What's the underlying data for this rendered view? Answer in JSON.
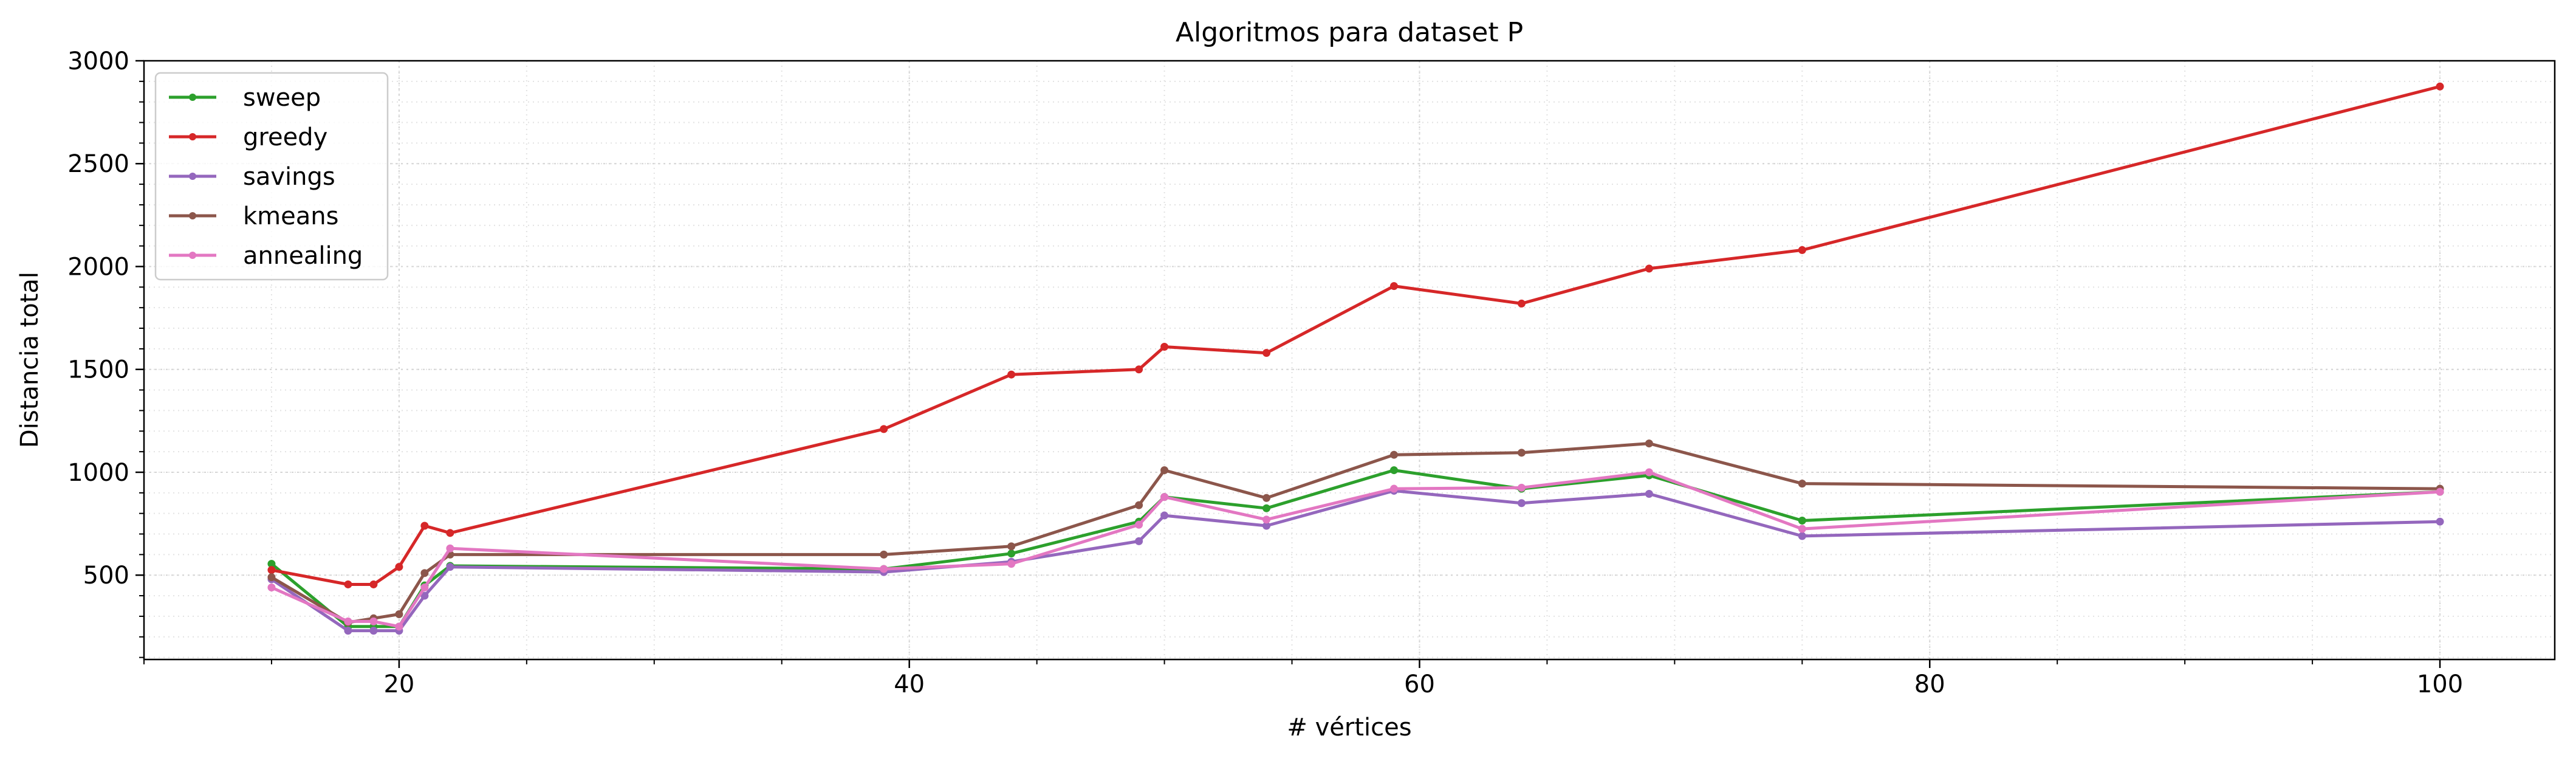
{
  "chart_data": {
    "type": "line",
    "title": "Algoritmos para dataset P",
    "xlabel": "# vértices",
    "ylabel": "Distancia total",
    "xlim": [
      10,
      104.5
    ],
    "ylim": [
      90,
      3000
    ],
    "x_ticks": [
      20,
      40,
      60,
      80,
      100
    ],
    "y_ticks": [
      500,
      1000,
      1500,
      2000,
      2500,
      3000
    ],
    "x_tick_labels": [
      "20",
      "40",
      "60",
      "80",
      "100"
    ],
    "y_tick_labels": [
      "500",
      "1000",
      "1500",
      "2000",
      "2500",
      "3000"
    ],
    "x_minor_step": 5,
    "y_minor_step": 100,
    "grid": true,
    "legend_position": "top-left",
    "x": [
      15,
      18,
      19,
      20,
      21,
      22,
      39,
      44,
      49,
      50,
      54,
      59,
      64,
      69,
      75,
      100
    ],
    "series": [
      {
        "name": "sweep",
        "color": "#2ca02c",
        "values": [
          555,
          250,
          250,
          250,
          450,
          545,
          530,
          605,
          760,
          880,
          825,
          1010,
          920,
          985,
          765,
          905
        ]
      },
      {
        "name": "greedy",
        "color": "#d62728",
        "values": [
          525,
          455,
          455,
          540,
          740,
          705,
          1210,
          1475,
          1500,
          1610,
          1580,
          1905,
          1820,
          1990,
          2080,
          2875
        ]
      },
      {
        "name": "savings",
        "color": "#9467bd",
        "values": [
          480,
          230,
          230,
          230,
          400,
          540,
          515,
          565,
          665,
          790,
          740,
          910,
          850,
          895,
          690,
          760
        ]
      },
      {
        "name": "kmeans",
        "color": "#8c564b",
        "values": [
          490,
          270,
          290,
          310,
          510,
          600,
          600,
          640,
          840,
          1010,
          875,
          1085,
          1095,
          1140,
          945,
          920
        ]
      },
      {
        "name": "annealing",
        "color": "#e377c2",
        "values": [
          440,
          275,
          275,
          250,
          440,
          630,
          530,
          555,
          745,
          880,
          770,
          920,
          925,
          1000,
          725,
          905
        ]
      }
    ]
  }
}
